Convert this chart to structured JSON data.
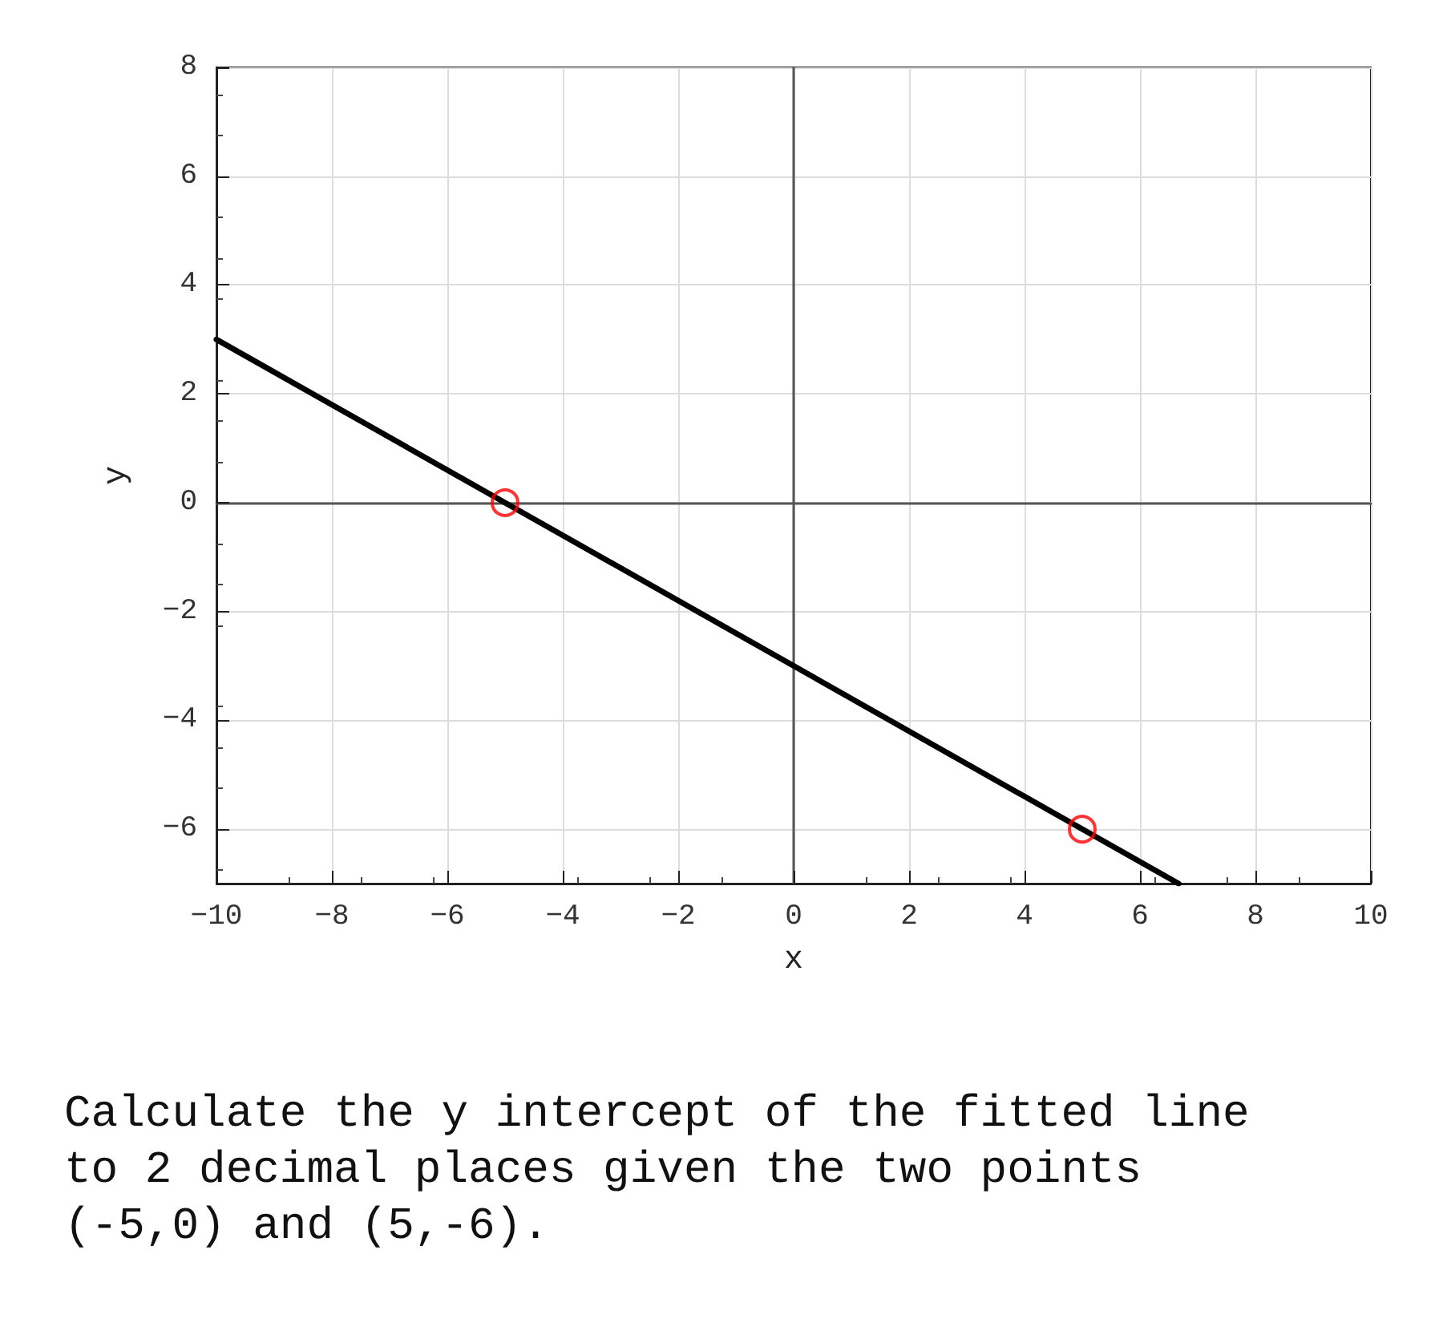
{
  "chart_data": {
    "type": "line",
    "xlabel": "x",
    "ylabel": "y",
    "xlim": [
      -10,
      10
    ],
    "xticks": [
      -10,
      -8,
      -6,
      -4,
      -2,
      0,
      2,
      4,
      6,
      8,
      10
    ],
    "ylim": [
      -7,
      8
    ],
    "yticks": [
      -6,
      -4,
      -2,
      0,
      2,
      4,
      6,
      8
    ],
    "grid": true,
    "series": [
      {
        "color": "#000000",
        "x": [
          -10,
          6.67
        ],
        "values": [
          3,
          -7
        ],
        "marker": "none",
        "line_style": "solid"
      },
      {
        "type": "scatter",
        "color": "#ff0000",
        "x": [
          -5,
          5
        ],
        "values": [
          0,
          -6
        ],
        "marker": "circle"
      }
    ],
    "annotations": [
      "Calculate the y intercept of the fitted line to 2 decimal places given the two points (-5,0) and (5,-6)."
    ]
  }
}
